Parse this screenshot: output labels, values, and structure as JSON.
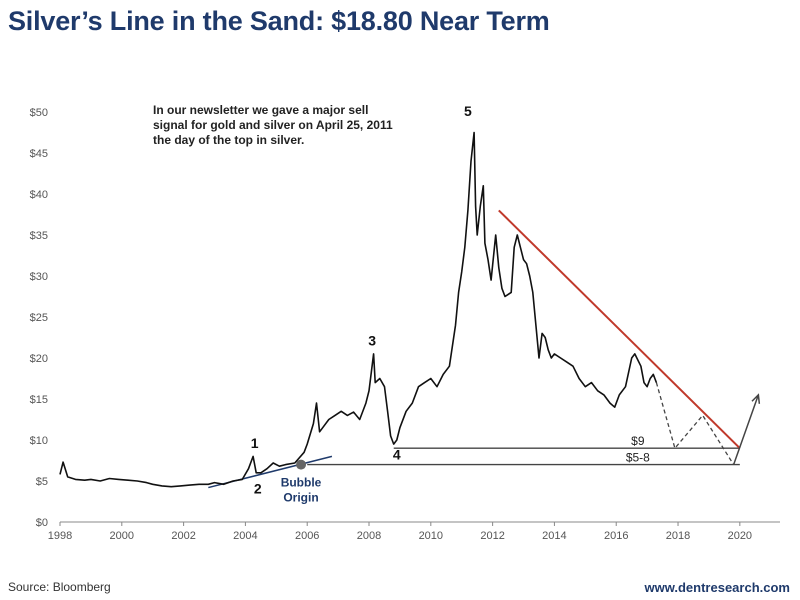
{
  "header": {
    "title": "Silver’s Line in the Sand: $18.80 Near Term"
  },
  "footer": {
    "source": "Source: Bloomberg",
    "website": "www.dentresearch.com"
  },
  "chart_data": {
    "type": "line",
    "xlabel": "",
    "ylabel": "",
    "xlim": [
      1998,
      2021.3
    ],
    "ylim": [
      0,
      50
    ],
    "x_ticks": [
      1998,
      2000,
      2002,
      2004,
      2006,
      2008,
      2010,
      2012,
      2014,
      2016,
      2018,
      2020
    ],
    "x_tick_labels": [
      "1998",
      "2000",
      "2002",
      "2004",
      "2006",
      "2008",
      "2010",
      "2012",
      "2014",
      "2016",
      "2018",
      "2020"
    ],
    "y_ticks": [
      0,
      5,
      10,
      15,
      20,
      25,
      30,
      35,
      40,
      45,
      50
    ],
    "y_tick_labels": [
      "$0",
      "$5",
      "$10",
      "$15",
      "$20",
      "$25",
      "$30",
      "$35",
      "$40",
      "$45",
      "$50"
    ],
    "grid": false,
    "legend": "none",
    "colors": {
      "price": "#111111",
      "resistance": "#c0392b",
      "support": "#444444",
      "projection": "#444444",
      "bubble_trend": "#1f3a6b",
      "bubble_point": "#666666"
    },
    "series": [
      {
        "x": [
          1998.0,
          1998.1,
          1998.25,
          1998.5,
          1998.8,
          1999.0,
          1999.3,
          1999.6,
          1999.9,
          2000.2,
          2000.5,
          2000.8,
          2001.0,
          2001.3,
          2001.6,
          2001.9,
          2002.2,
          2002.5,
          2002.8,
          2003.0,
          2003.3,
          2003.6,
          2003.9,
          2004.1,
          2004.25,
          2004.35,
          2004.5,
          2004.7,
          2004.9,
          2005.1,
          2005.3,
          2005.6,
          2005.9,
          2006.0,
          2006.2,
          2006.3,
          2006.4,
          2006.5,
          2006.7,
          2006.9,
          2007.1,
          2007.3,
          2007.5,
          2007.7,
          2007.9,
          2008.0,
          2008.15,
          2008.2,
          2008.35,
          2008.5,
          2008.6,
          2008.7,
          2008.8,
          2008.9,
          2009.0,
          2009.2,
          2009.4,
          2009.6,
          2009.8,
          2010.0,
          2010.2,
          2010.4,
          2010.6,
          2010.8,
          2010.9,
          2011.0,
          2011.1,
          2011.2,
          2011.3,
          2011.4,
          2011.45,
          2011.5,
          2011.6,
          2011.7,
          2011.75,
          2011.85,
          2011.95,
          2012.1,
          2012.2,
          2012.3,
          2012.4,
          2012.6,
          2012.7,
          2012.8,
          2012.9,
          2013.0,
          2013.1,
          2013.2,
          2013.3,
          2013.4,
          2013.5,
          2013.6,
          2013.7,
          2013.8,
          2013.9,
          2014.0,
          2014.2,
          2014.4,
          2014.6,
          2014.8,
          2015.0,
          2015.2,
          2015.4,
          2015.6,
          2015.8,
          2015.95,
          2016.1,
          2016.3,
          2016.5,
          2016.6,
          2016.8,
          2016.9,
          2017.0,
          2017.1,
          2017.2,
          2017.3
        ],
        "y": [
          5.8,
          7.3,
          5.5,
          5.2,
          5.1,
          5.2,
          5.0,
          5.3,
          5.2,
          5.1,
          5.0,
          4.8,
          4.6,
          4.4,
          4.3,
          4.4,
          4.5,
          4.6,
          4.6,
          4.8,
          4.6,
          5.0,
          5.2,
          6.5,
          8.0,
          6.0,
          6.0,
          6.5,
          7.2,
          6.8,
          7.0,
          7.2,
          8.5,
          9.5,
          12.0,
          14.5,
          11.0,
          11.5,
          12.5,
          13.0,
          13.5,
          13.0,
          13.4,
          12.5,
          14.5,
          16.0,
          20.5,
          17.0,
          17.5,
          16.5,
          13.5,
          10.5,
          9.5,
          10.0,
          11.5,
          13.5,
          14.5,
          16.5,
          17.0,
          17.5,
          16.5,
          18.0,
          19.0,
          24.0,
          28.0,
          30.5,
          33.5,
          38.0,
          44.0,
          47.5,
          38.5,
          35.0,
          38.5,
          41.0,
          34.0,
          32.0,
          29.5,
          35.0,
          31.0,
          28.5,
          27.5,
          28.0,
          33.5,
          35.0,
          33.5,
          32.0,
          31.5,
          30.0,
          28.0,
          24.0,
          20.0,
          23.0,
          22.5,
          21.0,
          20.0,
          20.5,
          20.0,
          19.5,
          19.0,
          17.5,
          16.5,
          17.0,
          16.0,
          15.5,
          14.5,
          14.0,
          15.5,
          16.5,
          20.0,
          20.5,
          19.0,
          17.0,
          16.5,
          17.5,
          18.0,
          17.0
        ]
      }
    ],
    "resistance_line": {
      "x": [
        2012.2,
        2020.0
      ],
      "y": [
        38.0,
        9.0
      ]
    },
    "support_lines": [
      {
        "label": "$9",
        "x": [
          2008.8,
          2020.0
        ],
        "y": [
          9.0,
          9.0
        ]
      },
      {
        "label": "$5-8",
        "x": [
          2006.0,
          2020.0
        ],
        "y": [
          7.0,
          7.0
        ]
      }
    ],
    "projection": {
      "x": [
        2017.3,
        2017.9,
        2018.8,
        2019.8,
        2020.6
      ],
      "y": [
        17.0,
        9.0,
        13.0,
        7.0,
        15.5
      ]
    },
    "bubble_trend": {
      "x": [
        2002.8,
        2006.8
      ],
      "y": [
        4.2,
        8.0
      ]
    },
    "bubble_point": {
      "x": 2005.8,
      "y": 7.0
    },
    "wave_labels": [
      {
        "label": "1",
        "x": 2004.3,
        "y": 9.0
      },
      {
        "label": "2",
        "x": 2004.4,
        "y": 3.5
      },
      {
        "label": "3",
        "x": 2008.1,
        "y": 21.5
      },
      {
        "label": "4",
        "x": 2008.9,
        "y": 7.6
      },
      {
        "label": "5",
        "x": 2011.2,
        "y": 49.5
      }
    ],
    "annotations": {
      "bubble_origin": [
        "Bubble",
        "Origin"
      ],
      "note": [
        "In our newsletter we gave a major sell",
        "signal for gold and silver on April 25, 2011",
        "the day of the top in silver."
      ]
    }
  }
}
